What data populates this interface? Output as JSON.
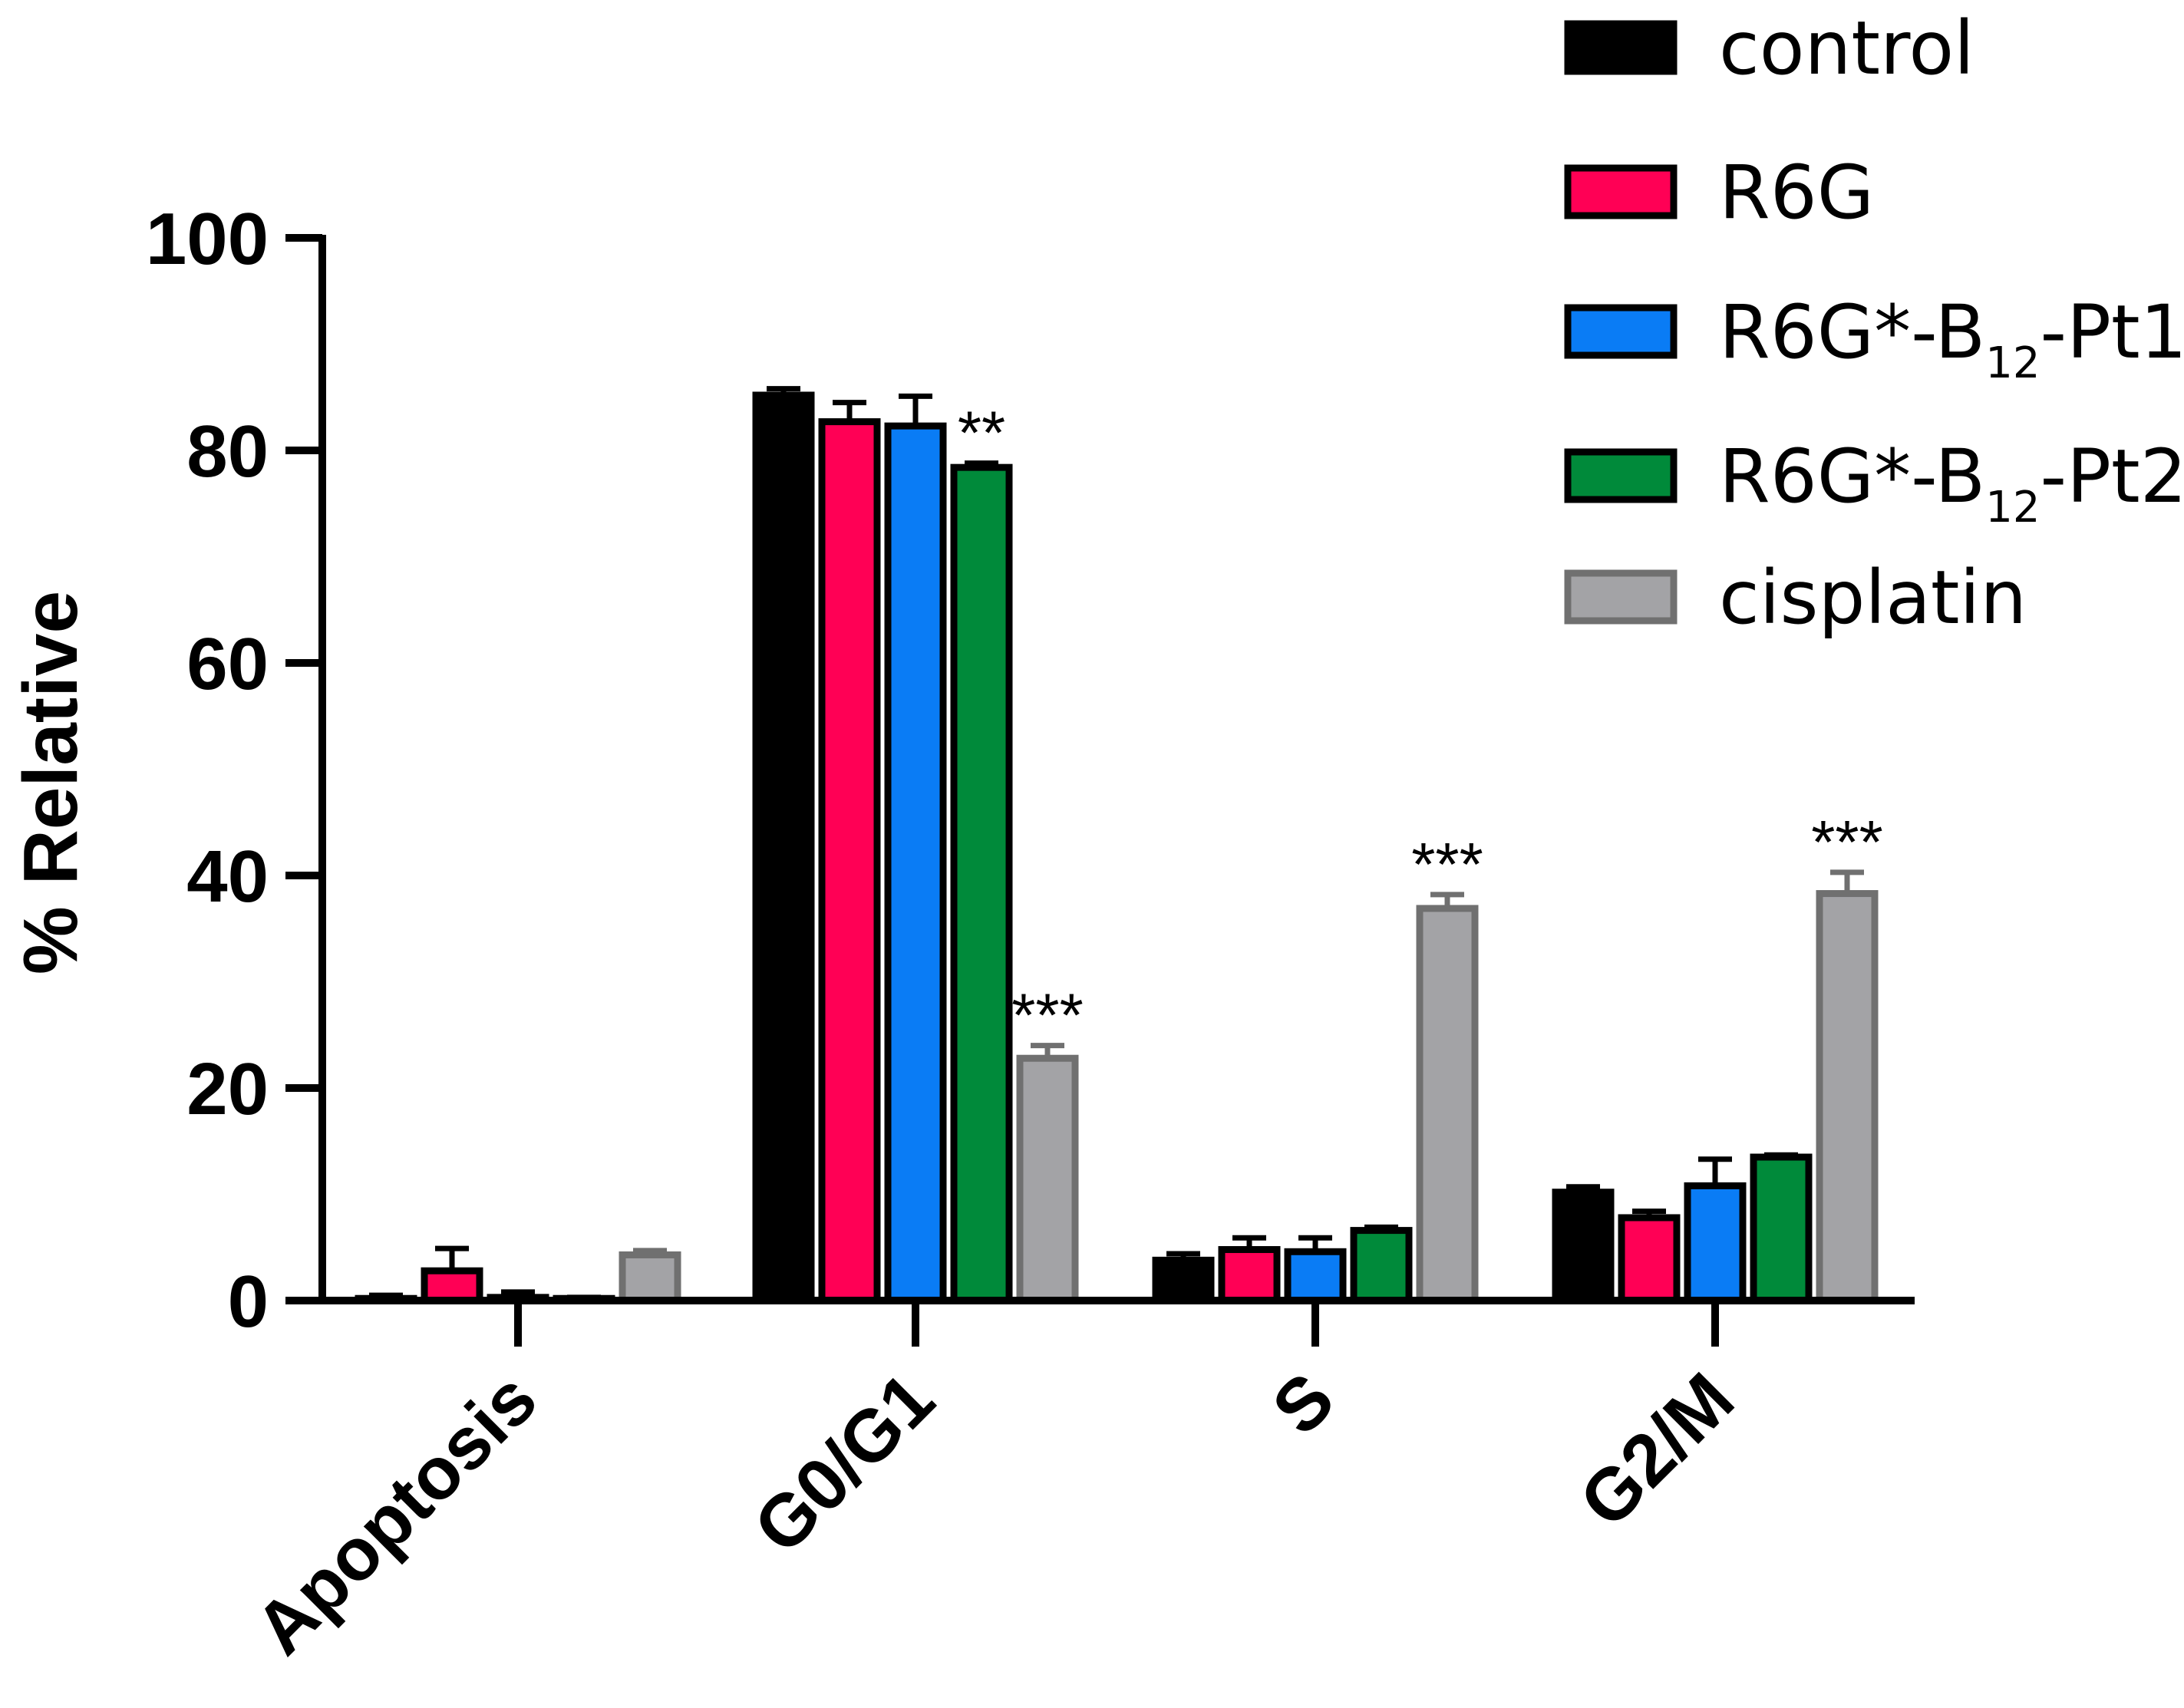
{
  "chart_data": {
    "type": "bar",
    "title": "",
    "xlabel": "",
    "ylabel": "% Relative",
    "ylim": [
      0,
      100
    ],
    "yticks": [
      0,
      20,
      40,
      60,
      80,
      100
    ],
    "categories": [
      "Apoptosis",
      "G0/G1",
      "S",
      "G2/M"
    ],
    "grid": false,
    "legend_position": "top-right",
    "series": [
      {
        "name": "control",
        "legend": {
          "main": "control",
          "sub": "",
          "tail": ""
        },
        "color": "#000000",
        "edge": "#000000",
        "values": [
          0.2,
          85.2,
          3.8,
          10.2
        ],
        "errors": [
          0.3,
          0.6,
          0.6,
          0.5
        ],
        "significance": [
          "",
          "",
          "",
          ""
        ]
      },
      {
        "name": "R6G",
        "legend": {
          "main": "R6G",
          "sub": "",
          "tail": ""
        },
        "color": "#ff0055",
        "edge": "#000000",
        "values": [
          2.8,
          82.7,
          4.8,
          7.8
        ],
        "errors": [
          2.1,
          1.8,
          1.1,
          0.6
        ],
        "significance": [
          "",
          "",
          "",
          ""
        ]
      },
      {
        "name": "R6G*-B12-Pt1",
        "legend": {
          "main": "R6G*-B",
          "sub": "12",
          "tail": "-Pt1"
        },
        "color": "#0a7cf5",
        "edge": "#000000",
        "values": [
          0.3,
          82.3,
          4.6,
          10.8
        ],
        "errors": [
          0.5,
          2.8,
          1.3,
          2.5
        ],
        "significance": [
          "",
          "",
          "",
          ""
        ]
      },
      {
        "name": "R6G*-B12-Pt2",
        "legend": {
          "main": "R6G*-B",
          "sub": "12",
          "tail": "-Pt2"
        },
        "color": "#008a3a",
        "edge": "#000000",
        "values": [
          0.2,
          78.4,
          6.6,
          13.5
        ],
        "errors": [
          0.1,
          0.4,
          0.3,
          0.2
        ],
        "significance": [
          "",
          "**",
          "",
          ""
        ]
      },
      {
        "name": "cisplatin",
        "legend": {
          "main": "cisplatin",
          "sub": "",
          "tail": ""
        },
        "color": "#a3a3a6",
        "edge": "#707070",
        "values": [
          4.3,
          22.8,
          36.9,
          38.3
        ],
        "errors": [
          0.4,
          1.2,
          1.3,
          2.0
        ],
        "significance": [
          "",
          "***",
          "***",
          "***"
        ]
      }
    ]
  }
}
